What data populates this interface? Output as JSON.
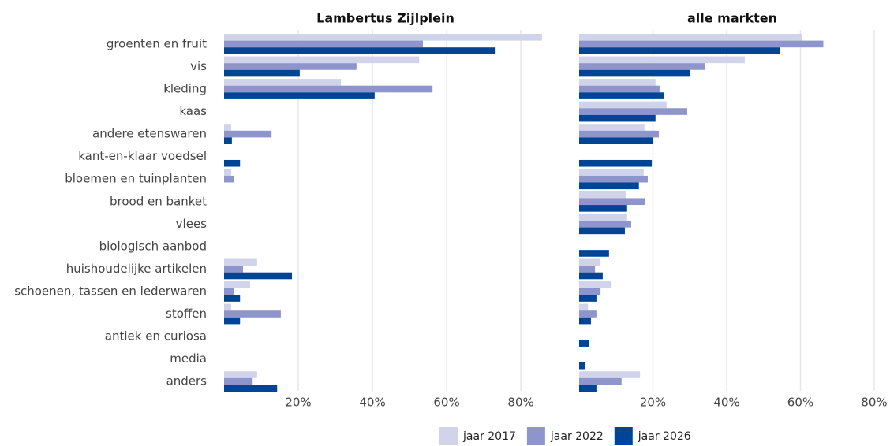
{
  "chart_data": [
    {
      "type": "bar",
      "orientation": "horizontal",
      "title": "Lambertus Zijlplein",
      "categories": [
        "groenten en fruit",
        "vis",
        "kleding",
        "kaas",
        "andere etenswaren",
        "kant-en-klaar voedsel",
        "bloemen en tuinplanten",
        "brood en banket",
        "vlees",
        "biologisch aanbod",
        "huishoudelijke artikelen",
        "schoenen, tassen en lederwaren",
        "stoffen",
        "antiek en curiosa",
        "media",
        "anders"
      ],
      "series": [
        {
          "name": "jaar 2017",
          "color": "#d0d3ea",
          "values": [
            85.7,
            52.6,
            31.5,
            0,
            1.9,
            0,
            1.9,
            0,
            0,
            0,
            8.9,
            7.0,
            1.9,
            0,
            0,
            8.9
          ]
        },
        {
          "name": "jaar 2022",
          "color": "#8e94cc",
          "values": [
            53.6,
            35.7,
            56.2,
            0,
            12.8,
            0,
            2.6,
            0,
            0,
            0,
            5.1,
            2.6,
            15.3,
            0,
            0,
            7.7
          ]
        },
        {
          "name": "jaar 2026",
          "color": "#004595",
          "values": [
            73.2,
            20.4,
            40.6,
            0,
            2.1,
            4.3,
            0,
            0,
            0,
            0,
            18.3,
            4.3,
            4.3,
            0,
            0,
            14.3
          ]
        }
      ],
      "xlim": [
        0,
        87
      ],
      "xticks": [
        {
          "value": 20,
          "label": "20%"
        },
        {
          "value": 40,
          "label": "40%"
        },
        {
          "value": 60,
          "label": "60%"
        },
        {
          "value": 80,
          "label": "80%"
        }
      ],
      "grid": true,
      "legend": "bottom"
    },
    {
      "type": "bar",
      "orientation": "horizontal",
      "title": "alle markten",
      "series": [
        {
          "color": "#d0d3ea",
          "values": [
            60.5,
            44.9,
            20.7,
            23.7,
            17.7,
            0,
            17.5,
            12.6,
            13.0,
            0,
            5.8,
            8.8,
            2.4,
            0,
            0,
            16.5
          ]
        },
        {
          "color": "#8e94cc",
          "values": [
            66.2,
            34.2,
            21.8,
            29.3,
            21.6,
            0,
            18.6,
            17.9,
            14.1,
            0,
            4.3,
            5.8,
            4.9,
            0,
            0,
            11.5
          ]
        },
        {
          "color": "#004595",
          "values": [
            54.5,
            30.1,
            22.9,
            20.7,
            19.9,
            19.7,
            16.2,
            13.0,
            12.4,
            8.1,
            6.4,
            4.9,
            3.2,
            2.6,
            1.5,
            4.9
          ]
        }
      ],
      "xlim": [
        0,
        83
      ],
      "xticks": [
        {
          "value": 20,
          "label": "20%"
        },
        {
          "value": 40,
          "label": "40%"
        },
        {
          "value": 60,
          "label": "60%"
        },
        {
          "value": 80,
          "label": "80%"
        }
      ],
      "grid": true
    }
  ]
}
